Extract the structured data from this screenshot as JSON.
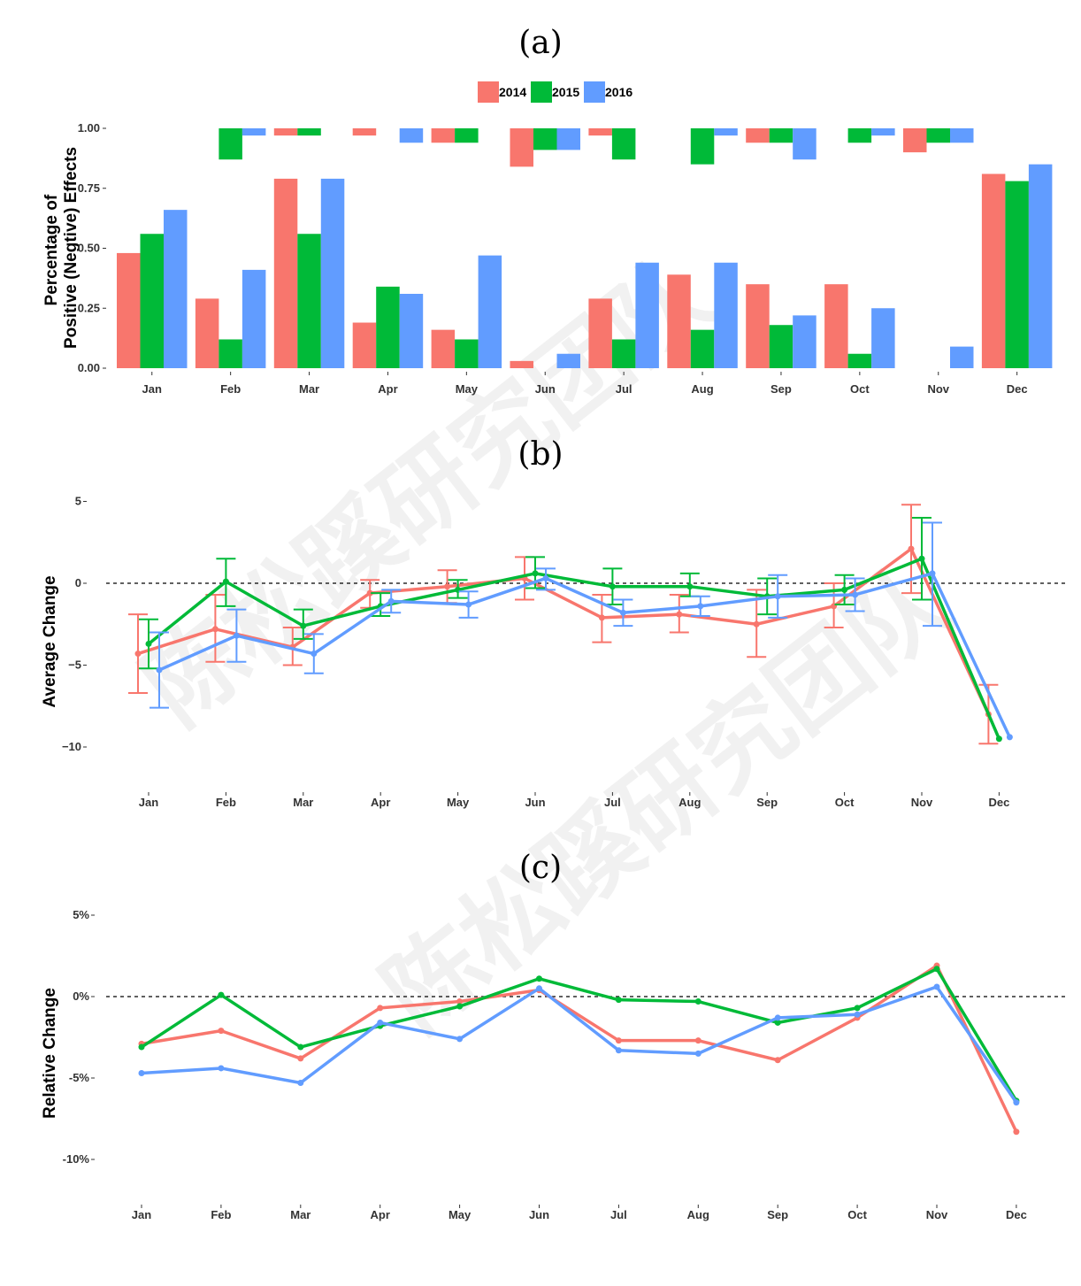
{
  "watermark": "陈松蹊研究团队",
  "colors": {
    "2014": "#f8766d",
    "2015": "#00ba38",
    "2016": "#619cff"
  },
  "chart_data": [
    {
      "panel": "(a)",
      "type": "bar",
      "ylabel_line1": "Percentage of",
      "ylabel_line2": "Positive (Negtive) Effects",
      "categories": [
        "Jan",
        "Feb",
        "Mar",
        "Apr",
        "May",
        "Jun",
        "Jul",
        "Aug",
        "Sep",
        "Oct",
        "Nov",
        "Dec"
      ],
      "ylim": [
        0,
        1
      ],
      "yticks": [
        "0.00",
        "0.25",
        "0.50",
        "0.75",
        "1.00"
      ],
      "legend": [
        "2014",
        "2015",
        "2016"
      ],
      "legend_position": "top",
      "series": [
        {
          "name": "2014",
          "positive": [
            0.48,
            0.29,
            0.79,
            0.19,
            0.16,
            0.03,
            0.29,
            0.39,
            0.35,
            0.35,
            0,
            0.81
          ],
          "negative": [
            0,
            0,
            0.03,
            0.03,
            0.06,
            0.16,
            0.03,
            0,
            0.06,
            0,
            0.1,
            0
          ]
        },
        {
          "name": "2015",
          "positive": [
            0.56,
            0.12,
            0.56,
            0.34,
            0.12,
            0,
            0.12,
            0.16,
            0.18,
            0.06,
            0,
            0.78
          ],
          "negative": [
            0,
            0.13,
            0.03,
            0,
            0.06,
            0.09,
            0.13,
            0.15,
            0.06,
            0.06,
            0.06,
            0
          ]
        },
        {
          "name": "2016",
          "positive": [
            0.66,
            0.41,
            0.79,
            0.31,
            0.47,
            0.06,
            0.44,
            0.44,
            0.22,
            0.25,
            0.09,
            0.85
          ],
          "negative": [
            0,
            0.03,
            0,
            0.06,
            0,
            0.09,
            0,
            0.03,
            0.13,
            0.03,
            0.06,
            0
          ]
        }
      ]
    },
    {
      "panel": "(b)",
      "type": "line",
      "ylabel": "Average Change",
      "categories": [
        "Jan",
        "Feb",
        "Mar",
        "Apr",
        "May",
        "Jun",
        "Jul",
        "Aug",
        "Sep",
        "Oct",
        "Nov",
        "Dec"
      ],
      "ylim": [
        -11,
        6
      ],
      "yticks": [
        5,
        0,
        -5,
        -10
      ],
      "reference_line": 0,
      "series": [
        {
          "name": "2014",
          "values": [
            -4.3,
            -2.8,
            -3.9,
            -0.6,
            -0.2,
            0.3,
            -2.1,
            -1.9,
            -2.5,
            -1.4,
            2.1,
            -8.0
          ],
          "err_low": [
            -6.7,
            -4.8,
            -5.0,
            -1.5,
            -1.2,
            -1.0,
            -3.6,
            -3.0,
            -4.5,
            -2.7,
            -0.6,
            -9.8
          ],
          "err_high": [
            -1.9,
            -0.7,
            -2.7,
            0.2,
            0.8,
            1.6,
            -0.7,
            -0.7,
            -0.4,
            0.0,
            4.8,
            -6.2
          ]
        },
        {
          "name": "2015",
          "values": [
            -3.7,
            0.1,
            -2.6,
            -1.4,
            -0.4,
            0.6,
            -0.2,
            -0.2,
            -0.8,
            -0.4,
            1.5,
            -9.5
          ],
          "err_low": [
            -5.2,
            -1.4,
            -3.4,
            -2.0,
            -0.9,
            -0.3,
            -1.3,
            -0.8,
            -1.9,
            -1.3,
            -1.0,
            null
          ],
          "err_high": [
            -2.2,
            1.5,
            -1.6,
            -0.6,
            0.2,
            1.6,
            0.9,
            0.6,
            0.3,
            0.5,
            4.0,
            null
          ]
        },
        {
          "name": "2016",
          "values": [
            -5.3,
            -3.2,
            -4.3,
            -1.1,
            -1.3,
            0.3,
            -1.8,
            -1.4,
            -0.8,
            -0.7,
            0.6,
            -9.4
          ],
          "err_low": [
            -7.6,
            -4.8,
            -5.5,
            -1.8,
            -2.1,
            -0.4,
            -2.6,
            -2.0,
            -2.1,
            -1.7,
            -2.6,
            null
          ],
          "err_high": [
            -3.0,
            -1.6,
            -3.1,
            -0.4,
            -0.5,
            0.9,
            -1.0,
            -0.8,
            0.5,
            0.3,
            3.7,
            null
          ]
        }
      ]
    },
    {
      "panel": "(c)",
      "type": "line",
      "ylabel": "Relative Change",
      "categories": [
        "Jan",
        "Feb",
        "Mar",
        "Apr",
        "May",
        "Jun",
        "Jul",
        "Aug",
        "Sep",
        "Oct",
        "Nov",
        "Dec"
      ],
      "ylim": [
        -12,
        7
      ],
      "yticks": [
        "5%",
        "0%",
        "-5%",
        "-10%"
      ],
      "ytick_values": [
        5,
        0,
        -5,
        -10
      ],
      "reference_line": 0,
      "series": [
        {
          "name": "2014",
          "values": [
            -2.9,
            -2.1,
            -3.8,
            -0.7,
            -0.3,
            0.4,
            -2.7,
            -2.7,
            -3.9,
            -1.3,
            1.9,
            -8.3
          ]
        },
        {
          "name": "2015",
          "values": [
            -3.1,
            0.1,
            -3.1,
            -1.8,
            -0.6,
            1.1,
            -0.2,
            -0.3,
            -1.6,
            -0.7,
            1.7,
            -6.4
          ]
        },
        {
          "name": "2016",
          "values": [
            -4.7,
            -4.4,
            -5.3,
            -1.6,
            -2.6,
            0.5,
            -3.3,
            -3.5,
            -1.3,
            -1.1,
            0.6,
            -6.5
          ]
        }
      ]
    }
  ]
}
